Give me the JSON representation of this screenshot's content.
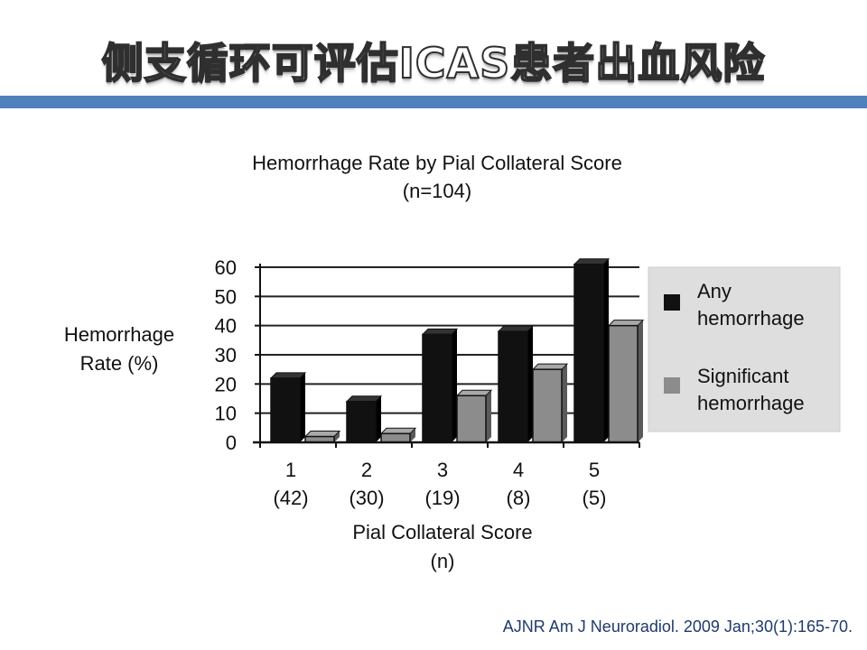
{
  "slide": {
    "title": "侧支循环可评估ICAS患者出血风险",
    "citation": "AJNR Am J Neuroradiol. 2009 Jan;30(1):165-70.",
    "accent_color": "#4f81bd"
  },
  "chart_data": {
    "type": "bar",
    "title": "Hemorrhage Rate by Pial Collateral Score",
    "subtitle": "(n=104)",
    "xlabel": [
      "Pial Collateral Score",
      "(n)"
    ],
    "ylabel": [
      "Hemorrhage",
      "Rate (%)"
    ],
    "categories": [
      "1",
      "2",
      "3",
      "4",
      "5"
    ],
    "category_n": [
      "(42)",
      "(30)",
      "(19)",
      "(8)",
      "(5)"
    ],
    "ylim": [
      0,
      60
    ],
    "yticks": [
      0,
      10,
      20,
      30,
      40,
      50,
      60
    ],
    "grid": true,
    "legend_position": "right",
    "series": [
      {
        "name": "Any hemorrhage",
        "legend_lines": [
          "Any",
          "hemorrhage"
        ],
        "color": "#111111",
        "values": [
          22,
          14,
          37,
          38,
          61
        ]
      },
      {
        "name": "Significant hemorrhage",
        "legend_lines": [
          "Significant",
          "hemorrhage"
        ],
        "color": "#8c8c8c",
        "values": [
          2,
          3,
          16,
          25,
          40
        ]
      }
    ]
  }
}
